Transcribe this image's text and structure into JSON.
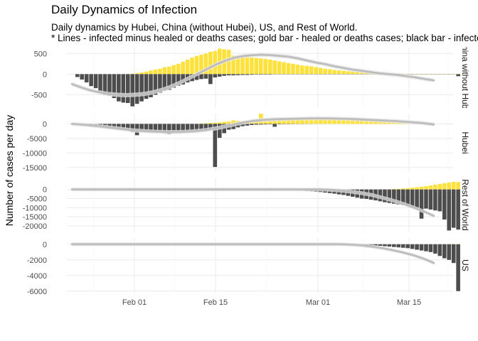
{
  "chart_data": {
    "type": "bar",
    "title": "Daily Dynamics of Infection",
    "subtitle_lines": [
      "Daily dynamics by Hubei, China (without Hubei), US, and Rest of World.",
      "* Lines - infected minus healed or deaths cases; gold bar - healed or deaths cases; black bar - infected cases"
    ],
    "ylabel": "Number of cases per day",
    "xlabel": "",
    "x_ticks": [
      "Feb 01",
      "Feb 15",
      "Mar 01",
      "Mar 15"
    ],
    "grid": true,
    "colors": {
      "infected": "#4d4d4d",
      "healed": "#fde23e",
      "line": "#bdbdbd",
      "band": "#e6e6e6",
      "grid": "#ebebeb"
    },
    "series_names": [
      "infected",
      "healed or deaths",
      "net"
    ],
    "panels": [
      {
        "name": "China without Hubei",
        "ylim": [
          -820,
          660
        ],
        "y_ticks": [
          500,
          0,
          -500
        ],
        "y_tick_labels": [
          "500",
          "0",
          "-500"
        ],
        "infected": [
          -70,
          -130,
          -200,
          -290,
          -340,
          -420,
          -500,
          -520,
          -580,
          -660,
          -690,
          -700,
          -780,
          -720,
          -660,
          -600,
          -560,
          -500,
          -450,
          -400,
          -380,
          -330,
          -280,
          -250,
          -200,
          -170,
          -140,
          -120,
          -110,
          -240,
          -80,
          -60,
          -40,
          -30,
          -30,
          -25,
          -20,
          -20,
          -15,
          -10,
          -10,
          -10,
          -10,
          -5,
          -5,
          -5,
          -5,
          -5,
          -5,
          -5,
          -5,
          -5,
          -5,
          -5,
          -5,
          -5,
          -5,
          -5,
          -5,
          -5,
          -5,
          -5,
          -5,
          -5,
          -5,
          -5,
          -5,
          -5,
          -5,
          -5,
          -5,
          -5,
          -5,
          -5,
          -5,
          -5,
          -5,
          -5,
          -5,
          -5,
          -5,
          -5,
          -5,
          -50
        ],
        "healed": [
          0,
          0,
          0,
          0,
          0,
          0,
          0,
          0,
          0,
          0,
          0,
          0,
          10,
          20,
          40,
          60,
          90,
          110,
          130,
          170,
          180,
          220,
          250,
          300,
          350,
          400,
          440,
          470,
          500,
          540,
          560,
          620,
          600,
          590,
          450,
          430,
          420,
          410,
          400,
          390,
          380,
          370,
          350,
          330,
          310,
          290,
          270,
          250,
          230,
          210,
          200,
          190,
          170,
          150,
          130,
          120,
          100,
          90,
          80,
          70,
          60,
          50,
          45,
          40,
          35,
          30,
          25,
          20,
          15,
          10,
          10,
          10,
          5,
          5,
          5,
          5,
          5,
          5,
          5,
          5,
          5,
          5,
          5,
          5
        ],
        "net": [
          -240,
          -320,
          -390,
          -440,
          -480,
          -500,
          -510,
          -500,
          -480,
          -440,
          -380,
          -300,
          -200,
          -90,
          20,
          130,
          240,
          330,
          400,
          440,
          460,
          470,
          460,
          440,
          420,
          380,
          330,
          280,
          240,
          190,
          150,
          110,
          80,
          50,
          20,
          0,
          -20,
          -50,
          -80,
          -120,
          -150
        ]
      },
      {
        "name": "Hubei",
        "ylim": [
          -16500,
          3500
        ],
        "y_ticks": [
          0,
          -5000,
          -10000,
          -15000
        ],
        "y_tick_labels": [
          "0",
          "-5000",
          "-10000",
          "-15000"
        ],
        "infected": [
          0,
          -50,
          -100,
          -200,
          -300,
          -500,
          -1000,
          -1500,
          -1200,
          -1800,
          -1500,
          -2200,
          -2800,
          -3900,
          -2500,
          -2600,
          -2700,
          -2800,
          -3000,
          -3200,
          -3500,
          -3000,
          -2800,
          -2600,
          -2400,
          -2600,
          -2400,
          -2300,
          -2000,
          -1800,
          -14800,
          -4800,
          -3200,
          -2000,
          -1800,
          -1200,
          -800,
          -600,
          -400,
          -300,
          -250,
          -200,
          -150,
          -1000,
          -150,
          -100,
          -100,
          -80,
          -60,
          -50,
          -40,
          -30,
          -20,
          -15,
          -10,
          -10,
          -10,
          -5,
          -5,
          -5,
          -5,
          -5,
          -5,
          -5,
          -5,
          -5,
          -5,
          -5,
          -5,
          -5,
          -5,
          -5,
          -5,
          -5,
          -5,
          -5,
          -5,
          -5,
          -5,
          -5,
          -5,
          -5,
          -5,
          -5
        ],
        "healed": [
          0,
          0,
          0,
          0,
          0,
          0,
          0,
          0,
          0,
          0,
          0,
          0,
          0,
          0,
          0,
          0,
          0,
          0,
          0,
          0,
          0,
          0,
          0,
          0,
          0,
          0,
          0,
          100,
          200,
          300,
          400,
          500,
          700,
          800,
          1200,
          1000,
          900,
          1100,
          1200,
          1300,
          3500,
          900,
          1000,
          1100,
          1200,
          1300,
          1400,
          1500,
          1600,
          1700,
          1800,
          1900,
          2000,
          2100,
          2000,
          1900,
          1800,
          1700,
          1600,
          1500,
          1400,
          1300,
          1200,
          1100,
          1000,
          900,
          800,
          700,
          600,
          500,
          400,
          300,
          200,
          100,
          0,
          0,
          0,
          0,
          0,
          0,
          0,
          0,
          0,
          0
        ],
        "net": [
          0,
          -300,
          -700,
          -1200,
          -1700,
          -2200,
          -2500,
          -2700,
          -2800,
          -2800,
          -2600,
          -2200,
          -1500,
          -600,
          300,
          1000,
          1400,
          1600,
          1700,
          1800,
          1900,
          1900,
          1800,
          1700,
          1500,
          1300,
          1100,
          900,
          600,
          300,
          -200
        ]
      },
      {
        "name": "Rest of World",
        "ylim": [
          -23500,
          6500
        ],
        "y_ticks": [
          0,
          -5000,
          -10000,
          -15000,
          -20000
        ],
        "y_tick_labels": [
          "0",
          "-5000",
          "-10000",
          "-15000",
          "-20000"
        ],
        "infected": [
          0,
          0,
          0,
          0,
          0,
          0,
          0,
          0,
          0,
          0,
          0,
          0,
          0,
          0,
          0,
          0,
          0,
          0,
          0,
          0,
          0,
          0,
          0,
          0,
          0,
          0,
          0,
          0,
          0,
          0,
          0,
          0,
          0,
          0,
          0,
          0,
          0,
          0,
          0,
          0,
          0,
          0,
          -50,
          -100,
          -150,
          -200,
          -300,
          -400,
          -500,
          -600,
          -800,
          -1000,
          -1200,
          -1400,
          -1700,
          -2000,
          -2300,
          -2700,
          -3000,
          -3500,
          -4000,
          -4500,
          -5000,
          -5200,
          -5600,
          -6000,
          -6500,
          -7000,
          -7400,
          -7800,
          -8200,
          -8600,
          -9000,
          -9600,
          -10000,
          -16000,
          -10500,
          -11000,
          -11500,
          -12000,
          -16500,
          -22500,
          -21000,
          -22000
        ],
        "healed": [
          0,
          0,
          0,
          0,
          0,
          0,
          0,
          0,
          0,
          0,
          0,
          0,
          0,
          0,
          0,
          0,
          0,
          0,
          0,
          0,
          0,
          0,
          0,
          0,
          0,
          0,
          0,
          0,
          0,
          0,
          0,
          0,
          0,
          0,
          0,
          0,
          0,
          0,
          0,
          0,
          0,
          0,
          0,
          0,
          0,
          0,
          0,
          0,
          0,
          0,
          0,
          0,
          0,
          0,
          0,
          0,
          0,
          0,
          0,
          0,
          0,
          0,
          0,
          0,
          0,
          0,
          0,
          0,
          100,
          200,
          300,
          500,
          700,
          1000,
          1200,
          1500,
          1800,
          2200,
          2600,
          3000,
          3400,
          3800,
          4200,
          4000
        ],
        "net": [
          0,
          0,
          0,
          0,
          0,
          0,
          0,
          0,
          0,
          0,
          0,
          0,
          0,
          0,
          0,
          0,
          0,
          0,
          0,
          0,
          0,
          0,
          0,
          0,
          0,
          -200,
          -600,
          -1200,
          -2000,
          -3000,
          -4500,
          -6000,
          -7800,
          -9800,
          -12000,
          -14500
        ]
      },
      {
        "name": "US",
        "ylim": [
          -6200,
          800
        ],
        "y_ticks": [
          0,
          -2000,
          -4000,
          -6000
        ],
        "y_tick_labels": [
          "0",
          "-2000",
          "-4000",
          "-6000"
        ],
        "infected": [
          0,
          0,
          0,
          0,
          0,
          0,
          0,
          0,
          0,
          0,
          0,
          0,
          0,
          0,
          0,
          0,
          0,
          0,
          0,
          0,
          0,
          0,
          0,
          0,
          0,
          0,
          0,
          0,
          0,
          0,
          0,
          0,
          0,
          0,
          0,
          0,
          0,
          0,
          0,
          0,
          0,
          0,
          0,
          0,
          0,
          0,
          0,
          0,
          0,
          0,
          0,
          0,
          0,
          0,
          0,
          0,
          -5,
          -10,
          -20,
          -30,
          -50,
          -80,
          -100,
          -120,
          -150,
          -180,
          -200,
          -250,
          -300,
          -350,
          -400,
          -450,
          -500,
          -600,
          -700,
          -800,
          -900,
          -1000,
          -1200,
          -1500,
          -1800,
          -2000,
          -2400,
          -6000
        ],
        "healed": [
          0,
          0,
          0,
          0,
          0,
          0,
          0,
          0,
          0,
          0,
          0,
          0,
          0,
          0,
          0,
          0,
          0,
          0,
          0,
          0,
          0,
          0,
          0,
          0,
          0,
          0,
          0,
          0,
          0,
          0,
          0,
          0,
          0,
          0,
          0,
          0,
          0,
          0,
          0,
          0,
          0,
          0,
          0,
          0,
          0,
          0,
          0,
          0,
          0,
          0,
          0,
          0,
          0,
          0,
          0,
          0,
          0,
          0,
          0,
          0,
          0,
          0,
          0,
          0,
          0,
          0,
          0,
          0,
          0,
          0,
          0,
          0,
          0,
          0,
          0,
          0,
          0,
          0,
          0,
          0,
          5,
          10,
          10,
          20
        ],
        "net": [
          0,
          0,
          0,
          0,
          0,
          0,
          0,
          0,
          0,
          0,
          0,
          0,
          0,
          0,
          0,
          0,
          0,
          0,
          0,
          0,
          0,
          0,
          0,
          0,
          0,
          0,
          0,
          -50,
          -150,
          -300,
          -500,
          -750,
          -1050,
          -1400,
          -1850,
          -2400
        ]
      }
    ]
  }
}
